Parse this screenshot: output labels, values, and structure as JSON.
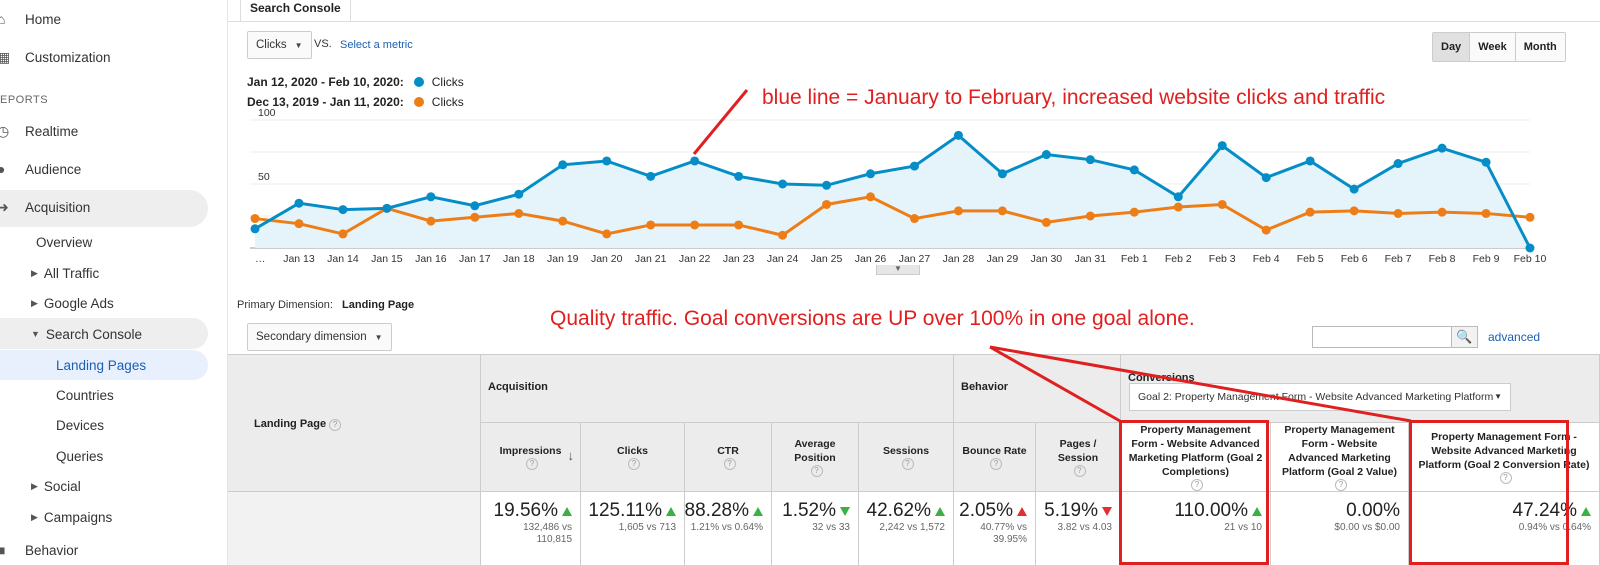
{
  "sidebar": {
    "home": "Home",
    "customization": "Customization",
    "reports_label": "EPORTS",
    "realtime": "Realtime",
    "audience": "Audience",
    "acquisition": "Acquisition",
    "overview": "Overview",
    "all_traffic": "All Traffic",
    "google_ads": "Google Ads",
    "search_console": "Search Console",
    "landing_pages": "Landing Pages",
    "countries": "Countries",
    "devices": "Devices",
    "queries": "Queries",
    "social": "Social",
    "campaigns": "Campaigns",
    "behavior": "Behavior"
  },
  "tab": {
    "label": "Search Console"
  },
  "controls": {
    "metric_select": "Clicks",
    "vs": "VS.",
    "select_metric": "Select a metric",
    "day": "Day",
    "week": "Week",
    "month": "Month"
  },
  "legend": {
    "range1": "Jan 12, 2020 - Feb 10, 2020:",
    "metric1": "Clicks",
    "range2": "Dec 13, 2019 - Jan 11, 2020:",
    "metric2": "Clicks",
    "color1": "#058dc7",
    "color2": "#ed7e17"
  },
  "annotations": {
    "chart_note": "blue line = January to February, increased website clicks and traffic",
    "table_note": "Quality traffic. Goal conversions are UP over 100% in one goal alone."
  },
  "chart_data": {
    "type": "line",
    "x": [
      "…",
      "Jan 13",
      "Jan 14",
      "Jan 15",
      "Jan 16",
      "Jan 17",
      "Jan 18",
      "Jan 19",
      "Jan 20",
      "Jan 21",
      "Jan 22",
      "Jan 23",
      "Jan 24",
      "Jan 25",
      "Jan 26",
      "Jan 27",
      "Jan 28",
      "Jan 29",
      "Jan 30",
      "Jan 31",
      "Feb 1",
      "Feb 2",
      "Feb 3",
      "Feb 4",
      "Feb 5",
      "Feb 6",
      "Feb 7",
      "Feb 8",
      "Feb 9",
      "Feb 10"
    ],
    "series": [
      {
        "name": "Jan 12, 2020 - Feb 10, 2020",
        "color": "#058dc7",
        "values": [
          15,
          35,
          30,
          31,
          40,
          33,
          42,
          65,
          68,
          56,
          68,
          56,
          50,
          49,
          58,
          64,
          88,
          58,
          73,
          69,
          61,
          40,
          80,
          55,
          68,
          46,
          66,
          78,
          67,
          0
        ]
      },
      {
        "name": "Dec 13, 2019 - Jan 11, 2020",
        "color": "#ed7e17",
        "values": [
          23,
          19,
          11,
          31,
          21,
          24,
          27,
          21,
          11,
          18,
          18,
          18,
          10,
          34,
          40,
          23,
          29,
          29,
          20,
          25,
          28,
          32,
          34,
          14,
          28,
          29,
          27,
          28,
          27,
          24
        ]
      }
    ],
    "yticks": [
      50,
      100
    ],
    "ylim": [
      0,
      100
    ],
    "grid": true
  },
  "table": {
    "primary_dim_label": "Primary Dimension:",
    "primary_dim_value": "Landing Page",
    "secondary_dim": "Secondary dimension",
    "advanced": "advanced",
    "landing_page_hdr": "Landing Page",
    "group_acquisition": "Acquisition",
    "group_behavior": "Behavior",
    "group_conversions": "Conversions",
    "goal_select": "Goal 2: Property Management Form - Website Advanced Marketing Platform",
    "columns": [
      {
        "label": "Impressions",
        "value": "19.56%",
        "sub1": "132,486 vs",
        "sub2": "110,815",
        "trend": "up"
      },
      {
        "label": "Clicks",
        "value": "125.11%",
        "sub1": "1,605 vs 713",
        "sub2": "",
        "trend": "up"
      },
      {
        "label": "CTR",
        "value": "88.28%",
        "sub1": "1.21% vs 0.64%",
        "sub2": "",
        "trend": "up"
      },
      {
        "label": "Average Position",
        "value": "1.52%",
        "sub1": "32 vs 33",
        "sub2": "",
        "trend": "down"
      },
      {
        "label": "Sessions",
        "value": "42.62%",
        "sub1": "2,242 vs 1,572",
        "sub2": "",
        "trend": "up"
      },
      {
        "label": "Bounce Rate",
        "value": "2.05%",
        "sub1": "40.77% vs",
        "sub2": "39.95%",
        "trend": "up-red"
      },
      {
        "label": "Pages / Session",
        "value": "5.19%",
        "sub1": "3.82 vs 4.03",
        "sub2": "",
        "trend": "down-red"
      },
      {
        "label": "Property Management Form - Website Advanced Marketing Platform (Goal 2 Completions)",
        "value": "110.00%",
        "sub1": "21 vs 10",
        "sub2": "",
        "trend": "up"
      },
      {
        "label": "Property Management Form - Website Advanced Marketing Platform (Goal 2 Value)",
        "value": "0.00%",
        "sub1": "$0.00 vs $0.00",
        "sub2": "",
        "trend": "none"
      },
      {
        "label": "Property Management Form - Website Advanced Marketing Platform (Goal 2 Conversion Rate)",
        "value": "47.24%",
        "sub1": "0.94% vs 0.64%",
        "sub2": "",
        "trend": "up"
      }
    ]
  }
}
